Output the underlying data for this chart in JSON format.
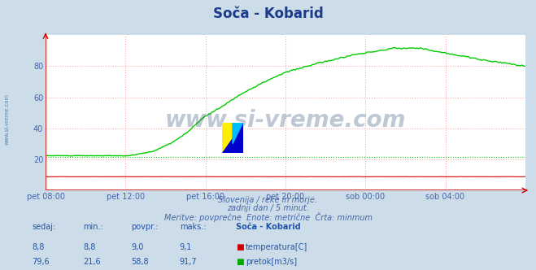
{
  "title": "Soča - Kobarid",
  "bg_color": "#ccdce8",
  "plot_bg_color": "#ffffff",
  "grid_color": "#ffaaaa",
  "x_labels": [
    "pet 08:00",
    "pet 12:00",
    "pet 16:00",
    "pet 20:00",
    "sob 00:00",
    "sob 04:00"
  ],
  "x_ticks": [
    0,
    48,
    96,
    144,
    192,
    240
  ],
  "x_max": 288,
  "ylim": [
    0,
    100
  ],
  "yticks": [
    20,
    40,
    60,
    80
  ],
  "flow_color": "#00cc00",
  "temp_color": "#cc0000",
  "watermark_text": "www.si-vreme.com",
  "watermark_color": "#1a3a6a",
  "sidebar_text": "www.si-vreme.com",
  "sidebar_color": "#336699",
  "subtitle1": "Slovenija / reke in morje.",
  "subtitle2": "zadnji dan / 5 minut.",
  "subtitle3": "Meritve: povprečne  Enote: metrične  Črta: minmum",
  "subtitle_color": "#4466aa",
  "table_color": "#2255aa",
  "table_header": [
    "sedaj:",
    "min.:",
    "povpr.:",
    "maks.:",
    "Soča - Kobarid"
  ],
  "temp_row": [
    "8,8",
    "8,8",
    "9,0",
    "9,1",
    "temperatura[C]"
  ],
  "flow_row": [
    "79,6",
    "21,6",
    "58,8",
    "91,7",
    "pretok[m3/s]"
  ],
  "title_color": "#1a3a8a",
  "title_fontsize": 12,
  "axis_label_color": "#4466aa",
  "temp_min_line": 21.6,
  "flow_start": 22.3,
  "flow_peak": 91.5,
  "flow_end": 80.0
}
